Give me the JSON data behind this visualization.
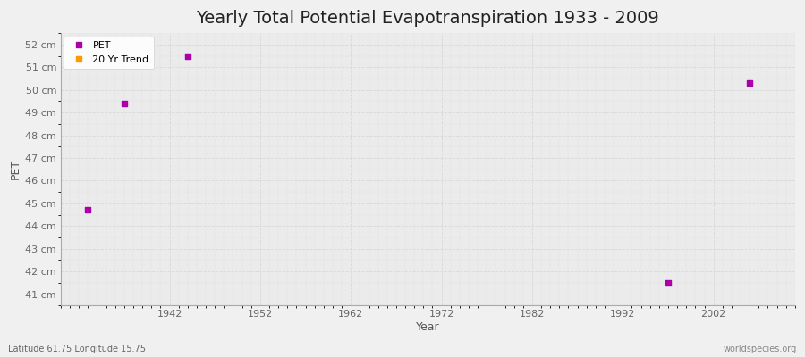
{
  "title": "Yearly Total Potential Evapotranspiration 1933 - 2009",
  "xlabel": "Year",
  "ylabel": "PET",
  "footnote_left": "Latitude 61.75 Longitude 15.75",
  "footnote_right": "worldspecies.org",
  "background_color": "#f0f0f0",
  "plot_bg_color": "#ebebeb",
  "grid_color": "#d8d8d8",
  "grid_linestyle": "--",
  "ylim": [
    40.5,
    52.5
  ],
  "xlim": [
    1930,
    2011
  ],
  "yticks": [
    41,
    42,
    43,
    44,
    45,
    46,
    47,
    48,
    49,
    50,
    51,
    52
  ],
  "ytick_labels": [
    "41 cm",
    "42 cm",
    "43 cm",
    "44 cm",
    "45 cm",
    "46 cm",
    "47 cm",
    "48 cm",
    "49 cm",
    "50 cm",
    "51 cm",
    "52 cm"
  ],
  "xticks": [
    1942,
    1952,
    1962,
    1972,
    1982,
    1992,
    2002
  ],
  "pet_color": "#aa00aa",
  "trend_color": "#ff9900",
  "pet_points": [
    [
      1933,
      44.7
    ],
    [
      1937,
      49.4
    ],
    [
      1944,
      51.5
    ],
    [
      1997,
      41.5
    ],
    [
      2006,
      50.3
    ]
  ],
  "legend_pet_label": "PET",
  "legend_trend_label": "20 Yr Trend",
  "title_fontsize": 14,
  "axis_label_fontsize": 9,
  "tick_fontsize": 8,
  "legend_fontsize": 8,
  "footnote_fontsize": 7,
  "marker_size": 4
}
